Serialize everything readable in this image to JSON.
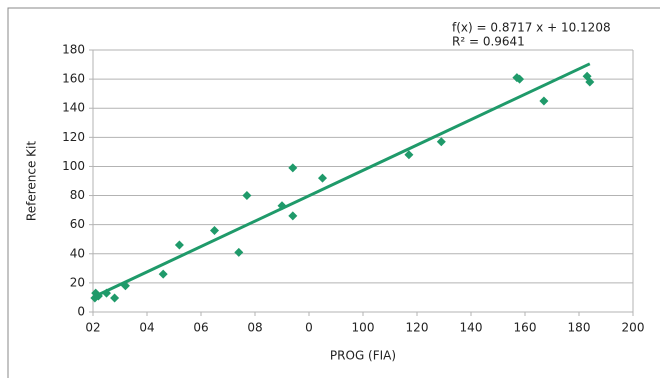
{
  "chart_data": {
    "type": "scatter",
    "x_label": "PROG (FIA)",
    "y_label": "Reference Kit",
    "color": "#1f9a6a",
    "x": [
      0.7,
      1,
      2,
      5,
      8,
      12,
      26,
      32,
      45,
      54,
      57,
      70,
      74,
      74,
      85,
      117,
      129,
      157,
      158,
      167,
      183,
      184
    ],
    "y": [
      9.6,
      13,
      11,
      13,
      9.6,
      18,
      26,
      46,
      56,
      41,
      80,
      73,
      66,
      99,
      92,
      108,
      117,
      161,
      160,
      145,
      162,
      158
    ],
    "xlim": [
      0,
      200
    ],
    "ylim": [
      0,
      180
    ],
    "xticks": [
      {
        "value": 0,
        "label": "02"
      },
      {
        "value": 20,
        "label": "04"
      },
      {
        "value": 40,
        "label": "06"
      },
      {
        "value": 60,
        "label": "08"
      },
      {
        "value": 80,
        "label": "0"
      },
      100,
      120,
      140,
      160,
      180,
      200
    ],
    "yticks": [
      0,
      20,
      40,
      60,
      80,
      100,
      120,
      140,
      160,
      180
    ],
    "grid": true,
    "trendline": {
      "slope": 0.8717,
      "intercept": 10.1208,
      "equation": "f(x) = 0.8717 x + 10.1208",
      "r_squared": "R² = 0.9641"
    }
  }
}
